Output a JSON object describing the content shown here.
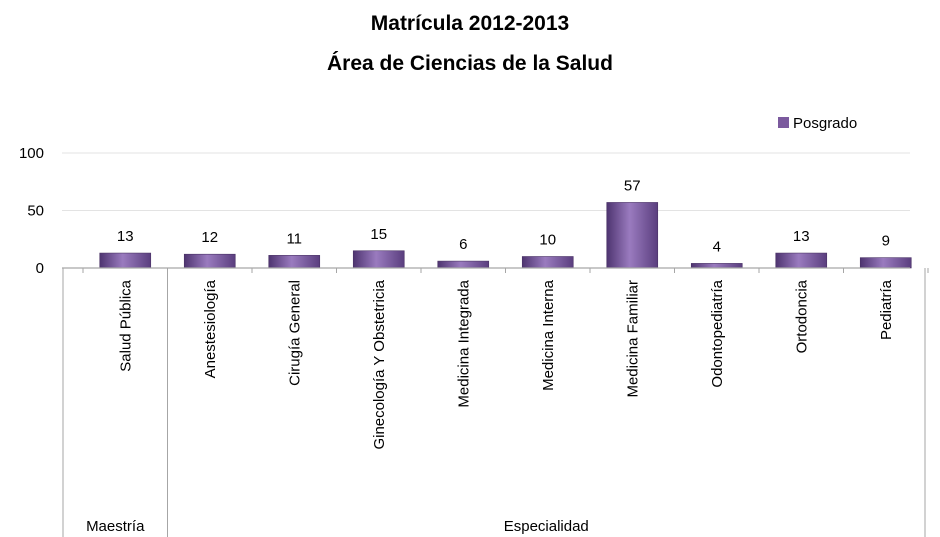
{
  "chart_data": {
    "type": "bar",
    "title": [
      "Matrícula 2012-2013",
      "Área de Ciencias de la Salud"
    ],
    "categories": [
      "Salud Pública",
      "Anestesiología",
      "Cirugía General",
      "Ginecología Y Obstetricia",
      "Medicina Integrada",
      "Medicina Interna",
      "Medicina Familiar",
      "Odontopediatría",
      "Ortodoncia",
      "Pediatría"
    ],
    "groups": [
      {
        "label": "Maestría",
        "count": 1
      },
      {
        "label": "Especialidad",
        "count": 9
      }
    ],
    "series": [
      {
        "name": "Posgrado",
        "values": [
          13,
          12,
          11,
          15,
          6,
          10,
          57,
          4,
          13,
          9
        ],
        "color": "#7b5a9e"
      }
    ],
    "ylim": [
      0,
      100
    ],
    "yticks": [
      0,
      50,
      100
    ],
    "grid": true,
    "legend": "top-right"
  }
}
